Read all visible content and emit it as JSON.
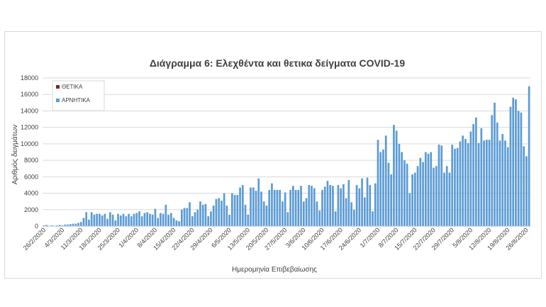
{
  "chart_data": {
    "type": "bar",
    "title": "Διάγραμμα 6: Ελεχθέντα και θετικα δείγματα COVID-19",
    "xlabel": "Ημερομηνία Επιβεβαίωσης",
    "ylabel": "Αριθμός δειγμάτων",
    "ylim": [
      0,
      18000
    ],
    "yticks": [
      0,
      2000,
      4000,
      6000,
      8000,
      10000,
      12000,
      14000,
      16000,
      18000
    ],
    "x_start": "26/2/2020",
    "x_tick_labels": [
      "26/2/2020",
      "4/3/2020",
      "11/3/2020",
      "18/3/2020",
      "25/3/2020",
      "1/4/2020",
      "8/4/2020",
      "15/4/2020",
      "22/4/2020",
      "29/4/2020",
      "6/5/2020",
      "13/5/2020",
      "20/5/2020",
      "27/5/2020",
      "3/6/2020",
      "10/6/2020",
      "17/6/2020",
      "24/6/2020",
      "1/7/2020",
      "8/7/2020",
      "15/7/2020",
      "22/7/2020",
      "29/7/2020",
      "5/8/2020",
      "12/8/2020",
      "19/8/2020",
      "26/8/2020"
    ],
    "legend": {
      "position": "top-left"
    },
    "grid": true,
    "series": [
      {
        "name": "ΘΕΤΙΚΑ",
        "color": "#7b2a2a",
        "values": [
          0,
          0,
          0,
          0,
          0,
          0,
          0,
          0,
          0,
          0,
          0,
          0,
          0,
          0,
          5,
          10,
          20,
          20,
          30,
          40,
          30,
          40,
          30,
          30,
          30,
          30,
          20,
          20,
          20,
          20,
          20,
          20,
          20,
          20,
          20,
          20,
          20,
          15,
          15,
          15,
          15,
          15,
          10,
          10,
          10,
          10,
          10,
          10,
          10,
          10,
          10,
          10,
          10,
          10,
          10,
          5,
          5,
          5,
          5,
          5,
          5,
          5,
          5,
          5,
          5,
          5,
          5,
          5,
          5,
          5,
          5,
          5,
          5,
          5,
          5,
          5,
          5,
          5,
          5,
          5,
          5,
          5,
          5,
          5,
          5,
          5,
          5,
          5,
          5,
          5,
          5,
          5,
          5,
          5,
          5,
          5,
          5,
          5,
          5,
          5,
          5,
          5,
          5,
          5,
          5,
          5,
          5,
          5,
          5,
          5,
          5,
          5,
          5,
          5,
          5,
          5,
          5,
          5,
          5,
          5,
          5,
          5,
          5,
          5,
          5,
          5,
          5,
          5,
          5,
          5,
          5,
          5,
          5,
          5,
          5,
          5,
          5,
          5,
          5,
          5,
          5,
          5,
          5,
          5,
          5,
          5,
          5,
          5,
          5,
          5,
          5,
          5,
          5,
          5,
          5,
          5,
          5,
          5,
          5,
          5,
          5,
          5,
          5,
          5,
          5,
          5,
          5,
          5,
          5,
          5,
          5,
          5,
          5,
          5,
          5,
          5,
          5,
          5,
          5,
          5,
          5,
          5
        ]
      },
      {
        "name": "ΑΡΝΗΤΙΚΑ",
        "color": "#5b9bd5",
        "values": [
          100,
          150,
          50,
          100,
          50,
          100,
          150,
          100,
          200,
          200,
          250,
          300,
          300,
          400,
          500,
          1000,
          1700,
          800,
          1700,
          1400,
          1500,
          1500,
          1300,
          1500,
          900,
          1700,
          1400,
          700,
          1500,
          1300,
          1500,
          1200,
          1500,
          1200,
          1500,
          1600,
          1800,
          1200,
          1600,
          1700,
          1500,
          1400,
          2100,
          1000,
          1600,
          1500,
          2600,
          1400,
          1600,
          1000,
          700,
          600,
          2000,
          2200,
          2200,
          2900,
          1200,
          1700,
          2000,
          3000,
          2600,
          2700,
          1200,
          1800,
          2500,
          3300,
          3400,
          3100,
          4000,
          2500,
          1400,
          4000,
          3800,
          3800,
          4700,
          5000,
          2600,
          1400,
          4700,
          4700,
          4300,
          5800,
          4200,
          3000,
          2500,
          4400,
          5200,
          4400,
          4400,
          4400,
          3000,
          4100,
          1700,
          4400,
          4900,
          4400,
          4400,
          4900,
          3000,
          3400,
          5000,
          4900,
          4600,
          3000,
          1900,
          4400,
          4800,
          5500,
          5000,
          4900,
          1800,
          5000,
          4600,
          5100,
          3400,
          5600,
          2900,
          2000,
          5000,
          4600,
          5800,
          3500,
          5900,
          5000,
          1800,
          5200,
          10500,
          9000,
          9300,
          11000,
          7700,
          6300,
          12300,
          11600,
          10000,
          9000,
          8000,
          7600,
          4000,
          6300,
          6500,
          7300,
          8300,
          7800,
          9000,
          8800,
          9000,
          7100,
          7300,
          9900,
          9800,
          6500,
          7300,
          6500,
          9900,
          9400,
          9500,
          10300,
          11000,
          10600,
          10100,
          11500,
          12400,
          13200,
          10100,
          11900,
          10400,
          10500,
          10500,
          13500,
          15000,
          12600,
          10400,
          11200,
          10400,
          9600,
          14500,
          15600,
          15400,
          14000,
          13800,
          9700,
          8500,
          17000
        ]
      }
    ]
  }
}
